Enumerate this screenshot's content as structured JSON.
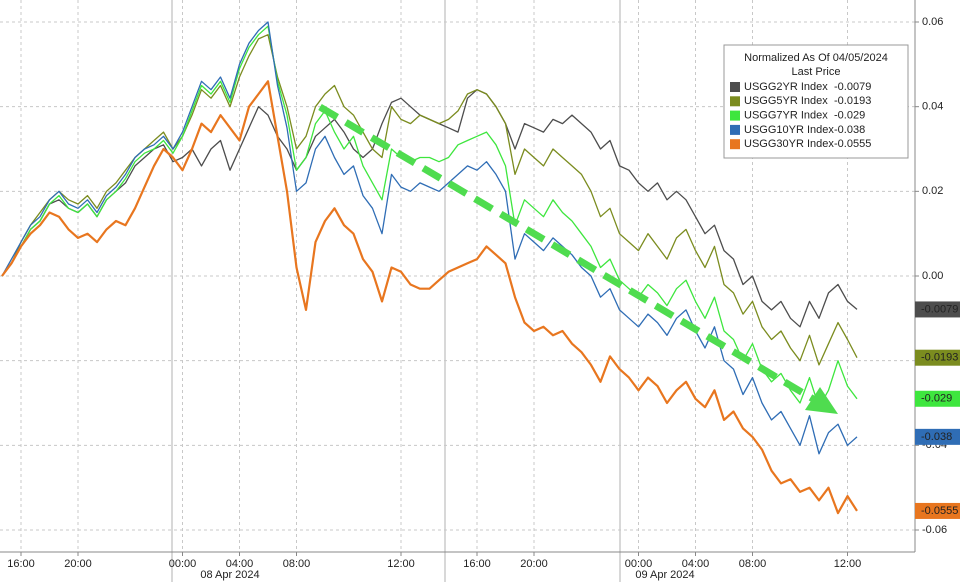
{
  "chart_data": {
    "type": "line",
    "legend_title": "Normalized As Of 04/05/2024",
    "legend_subtitle": "Last Price",
    "categories": [
      null,
      null,
      "16:00",
      null,
      null,
      null,
      null,
      null,
      "20:00",
      null,
      null,
      null,
      null,
      null,
      null,
      null,
      null,
      null,
      null,
      "00:00",
      null,
      null,
      null,
      null,
      null,
      "04:00",
      null,
      null,
      null,
      null,
      null,
      "08:00",
      null,
      null,
      null,
      null,
      null,
      null,
      null,
      null,
      null,
      null,
      "12:00",
      null,
      null,
      null,
      null,
      null,
      null,
      null,
      "16:00",
      null,
      null,
      null,
      null,
      null,
      "20:00",
      null,
      null,
      null,
      null,
      null,
      null,
      null,
      null,
      null,
      null,
      "00:00",
      null,
      null,
      null,
      null,
      null,
      "04:00",
      null,
      null,
      null,
      null,
      null,
      "08:00",
      null,
      null,
      null,
      null,
      null,
      null,
      null,
      null,
      null,
      "12:00",
      null
    ],
    "date_labels": [
      "08 Apr 2024",
      "09 Apr 2024"
    ],
    "ylim": [
      -0.0652,
      0.0652
    ],
    "yticks": [
      0.06,
      0.04,
      0.02,
      {
        "value": 0,
        "label": "0.00"
      },
      -0.02,
      -0.04,
      -0.06
    ],
    "grid": true,
    "series": [
      {
        "name": "USGG2YR Index",
        "color": "#4d4d4d",
        "values": [
          0,
          0.003,
          0.007,
          0.011,
          0.013,
          0.017,
          0.018,
          0.016,
          0.015,
          0.017,
          0.014,
          0.018,
          0.02,
          0.022,
          0.026,
          0.028,
          0.03,
          0.031,
          0.027,
          0.028,
          0.03,
          0.026,
          0.03,
          0.032,
          0.025,
          0.03,
          0.035,
          0.04,
          0.038,
          0.033,
          0.03,
          0.025,
          0.028,
          0.033,
          0.035,
          0.037,
          0.034,
          0.03,
          0.028,
          0.03,
          0.036,
          0.041,
          0.042,
          0.04,
          0.038,
          0.037,
          0.036,
          0.035,
          0.034,
          0.042,
          0.044,
          0.043,
          0.04,
          0.036,
          0.03,
          0.036,
          0.035,
          0.034,
          0.037,
          0.036,
          0.038,
          0.036,
          0.034,
          0.03,
          0.032,
          0.026,
          0.025,
          0.022,
          0.02,
          0.022,
          0.018,
          0.02,
          0.018,
          0.014,
          0.01,
          0.012,
          0.006,
          0.004,
          -0.002,
          0,
          -0.006,
          -0.008,
          -0.006,
          -0.01,
          -0.012,
          -0.006,
          -0.01,
          -0.004,
          -0.002,
          -0.006,
          -0.0079
        ]
      },
      {
        "name": "USGG5YR Index",
        "color": "#7b8c1f",
        "values": [
          0,
          0.003,
          0.008,
          0.012,
          0.015,
          0.018,
          0.02,
          0.018,
          0.017,
          0.019,
          0.016,
          0.02,
          0.022,
          0.025,
          0.028,
          0.03,
          0.032,
          0.034,
          0.03,
          0.033,
          0.038,
          0.044,
          0.042,
          0.045,
          0.04,
          0.047,
          0.052,
          0.056,
          0.057,
          0.047,
          0.04,
          0.03,
          0.033,
          0.04,
          0.043,
          0.045,
          0.04,
          0.038,
          0.034,
          0.03,
          0.028,
          0.04,
          0.037,
          0.036,
          0.038,
          0.037,
          0.036,
          0.037,
          0.039,
          0.043,
          0.044,
          0.043,
          0.04,
          0.036,
          0.024,
          0.03,
          0.028,
          0.026,
          0.03,
          0.028,
          0.026,
          0.024,
          0.02,
          0.014,
          0.016,
          0.01,
          0.008,
          0.006,
          0.01,
          0.007,
          0.004,
          0.009,
          0.011,
          0.006,
          0.002,
          0.007,
          -0.002,
          -0.004,
          -0.009,
          -0.006,
          -0.012,
          -0.015,
          -0.013,
          -0.017,
          -0.02,
          -0.014,
          -0.021,
          -0.016,
          -0.011,
          -0.015,
          -0.0193
        ]
      },
      {
        "name": "USGG7YR Index",
        "color": "#3ee63e",
        "values": [
          0,
          0.003,
          0.007,
          0.011,
          0.013,
          0.017,
          0.019,
          0.016,
          0.015,
          0.017,
          0.014,
          0.018,
          0.02,
          0.023,
          0.027,
          0.029,
          0.03,
          0.032,
          0.029,
          0.033,
          0.039,
          0.045,
          0.043,
          0.046,
          0.041,
          0.049,
          0.054,
          0.057,
          0.059,
          0.046,
          0.038,
          0.025,
          0.028,
          0.036,
          0.039,
          0.034,
          0.03,
          0.033,
          0.026,
          0.022,
          0.018,
          0.03,
          0.028,
          0.027,
          0.028,
          0.028,
          0.027,
          0.028,
          0.031,
          0.032,
          0.033,
          0.034,
          0.031,
          0.026,
          0.012,
          0.018,
          0.016,
          0.014,
          0.018,
          0.015,
          0.013,
          0.01,
          0.007,
          0.002,
          0.004,
          -0.001,
          -0.003,
          -0.005,
          -0.002,
          -0.004,
          -0.007,
          -0.003,
          -0.001,
          -0.006,
          -0.01,
          -0.005,
          -0.013,
          -0.015,
          -0.02,
          -0.016,
          -0.022,
          -0.025,
          -0.023,
          -0.027,
          -0.03,
          -0.024,
          -0.031,
          -0.027,
          -0.02,
          -0.026,
          -0.029
        ]
      },
      {
        "name": "USGG10YR Index",
        "color": "#2f6db5",
        "values": [
          0,
          0.004,
          0.008,
          0.012,
          0.014,
          0.018,
          0.02,
          0.017,
          0.016,
          0.018,
          0.015,
          0.019,
          0.021,
          0.024,
          0.028,
          0.03,
          0.031,
          0.033,
          0.03,
          0.034,
          0.04,
          0.046,
          0.044,
          0.047,
          0.042,
          0.05,
          0.055,
          0.058,
          0.06,
          0.045,
          0.035,
          0.02,
          0.022,
          0.03,
          0.033,
          0.028,
          0.024,
          0.026,
          0.019,
          0.016,
          0.01,
          0.024,
          0.021,
          0.02,
          0.022,
          0.021,
          0.02,
          0.022,
          0.024,
          0.026,
          0.025,
          0.027,
          0.024,
          0.02,
          0.004,
          0.01,
          0.008,
          0.006,
          0.009,
          0.007,
          0.005,
          0.002,
          0,
          -0.005,
          -0.003,
          -0.008,
          -0.01,
          -0.012,
          -0.009,
          -0.011,
          -0.014,
          -0.01,
          -0.008,
          -0.013,
          -0.017,
          -0.012,
          -0.02,
          -0.022,
          -0.028,
          -0.024,
          -0.03,
          -0.034,
          -0.032,
          -0.036,
          -0.04,
          -0.033,
          -0.042,
          -0.037,
          -0.035,
          -0.04,
          -0.038
        ]
      },
      {
        "name": "USGG30YR Index",
        "color": "#e8761f",
        "values": [
          0,
          0.003,
          0.007,
          0.01,
          0.012,
          0.015,
          0.014,
          0.011,
          0.009,
          0.01,
          0.008,
          0.011,
          0.013,
          0.012,
          0.016,
          0.021,
          0.026,
          0.03,
          0.028,
          0.025,
          0.03,
          0.036,
          0.034,
          0.038,
          0.035,
          0.032,
          0.04,
          0.043,
          0.046,
          0.033,
          0.02,
          0.002,
          -0.008,
          0.008,
          0.013,
          0.016,
          0.012,
          0.01,
          0.004,
          0.001,
          -0.006,
          0.002,
          0.001,
          -0.002,
          -0.003,
          -0.003,
          -0.001,
          0.001,
          0.002,
          0.003,
          0.004,
          0.007,
          0.005,
          0.003,
          -0.005,
          -0.011,
          -0.013,
          -0.012,
          -0.014,
          -0.013,
          -0.016,
          -0.018,
          -0.021,
          -0.025,
          -0.019,
          -0.022,
          -0.024,
          -0.027,
          -0.024,
          -0.026,
          -0.03,
          -0.027,
          -0.025,
          -0.029,
          -0.031,
          -0.027,
          -0.034,
          -0.032,
          -0.036,
          -0.038,
          -0.041,
          -0.046,
          -0.049,
          -0.048,
          -0.051,
          -0.05,
          -0.053,
          -0.05,
          -0.056,
          -0.052,
          -0.0555
        ]
      }
    ]
  }
}
